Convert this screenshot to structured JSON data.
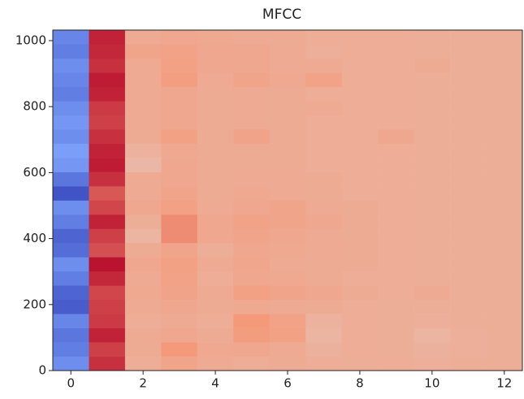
{
  "chart_data": {
    "type": "heatmap",
    "title": "MFCC",
    "colormap": "coolwarm",
    "vlim": [
      -1,
      1
    ],
    "x": [
      0,
      1,
      2,
      3,
      4,
      5,
      6,
      7,
      8,
      9,
      10,
      11,
      12
    ],
    "ybins": [
      0,
      43,
      86,
      129,
      172,
      215,
      258,
      301,
      344,
      387,
      430,
      473,
      516,
      559,
      602,
      645,
      688,
      731,
      774,
      817,
      860,
      903,
      946,
      989,
      1032
    ],
    "z": [
      [
        -0.6,
        0.85,
        0.36,
        0.42,
        0.38,
        0.36,
        0.37,
        0.36,
        0.35,
        0.36,
        0.34,
        0.35,
        0.35
      ],
      [
        -0.7,
        0.8,
        0.37,
        0.5,
        0.39,
        0.4,
        0.38,
        0.33,
        0.36,
        0.35,
        0.33,
        0.34,
        0.35
      ],
      [
        -0.75,
        0.9,
        0.38,
        0.4,
        0.37,
        0.48,
        0.45,
        0.3,
        0.36,
        0.35,
        0.3,
        0.34,
        0.35
      ],
      [
        -0.65,
        0.82,
        0.36,
        0.38,
        0.36,
        0.5,
        0.44,
        0.32,
        0.36,
        0.35,
        0.34,
        0.35,
        0.35
      ],
      [
        -0.9,
        0.8,
        0.38,
        0.4,
        0.37,
        0.39,
        0.38,
        0.37,
        0.36,
        0.35,
        0.35,
        0.35,
        0.35
      ],
      [
        -0.85,
        0.78,
        0.39,
        0.43,
        0.38,
        0.45,
        0.42,
        0.4,
        0.37,
        0.36,
        0.38,
        0.35,
        0.35
      ],
      [
        -0.7,
        0.88,
        0.38,
        0.44,
        0.36,
        0.4,
        0.39,
        0.37,
        0.36,
        0.36,
        0.35,
        0.35,
        0.35
      ],
      [
        -0.6,
        0.95,
        0.4,
        0.45,
        0.38,
        0.41,
        0.38,
        0.37,
        0.37,
        0.36,
        0.35,
        0.35,
        0.35
      ],
      [
        -0.8,
        0.75,
        0.37,
        0.42,
        0.35,
        0.4,
        0.39,
        0.38,
        0.37,
        0.36,
        0.35,
        0.35,
        0.35
      ],
      [
        -0.85,
        0.8,
        0.3,
        0.55,
        0.4,
        0.42,
        0.4,
        0.38,
        0.37,
        0.36,
        0.35,
        0.35,
        0.35
      ],
      [
        -0.7,
        0.9,
        0.35,
        0.55,
        0.4,
        0.44,
        0.42,
        0.4,
        0.37,
        0.36,
        0.35,
        0.35,
        0.35
      ],
      [
        -0.6,
        0.78,
        0.4,
        0.45,
        0.38,
        0.4,
        0.42,
        0.38,
        0.37,
        0.36,
        0.35,
        0.35,
        0.35
      ],
      [
        -0.95,
        0.72,
        0.38,
        0.42,
        0.37,
        0.39,
        0.38,
        0.37,
        0.36,
        0.36,
        0.35,
        0.35,
        0.35
      ],
      [
        -0.75,
        0.85,
        0.38,
        0.4,
        0.37,
        0.38,
        0.38,
        0.37,
        0.36,
        0.36,
        0.35,
        0.35,
        0.35
      ],
      [
        -0.55,
        0.92,
        0.28,
        0.4,
        0.37,
        0.37,
        0.37,
        0.36,
        0.36,
        0.36,
        0.35,
        0.35,
        0.35
      ],
      [
        -0.5,
        0.9,
        0.32,
        0.39,
        0.37,
        0.37,
        0.37,
        0.36,
        0.36,
        0.36,
        0.35,
        0.35,
        0.35
      ],
      [
        -0.6,
        0.85,
        0.37,
        0.45,
        0.37,
        0.43,
        0.37,
        0.36,
        0.36,
        0.4,
        0.35,
        0.35,
        0.35
      ],
      [
        -0.55,
        0.8,
        0.38,
        0.4,
        0.37,
        0.38,
        0.37,
        0.36,
        0.36,
        0.36,
        0.35,
        0.35,
        0.35
      ],
      [
        -0.6,
        0.82,
        0.38,
        0.4,
        0.37,
        0.38,
        0.37,
        0.38,
        0.36,
        0.36,
        0.35,
        0.35,
        0.35
      ],
      [
        -0.7,
        0.9,
        0.38,
        0.4,
        0.37,
        0.38,
        0.37,
        0.36,
        0.36,
        0.36,
        0.35,
        0.35,
        0.35
      ],
      [
        -0.65,
        0.92,
        0.38,
        0.47,
        0.38,
        0.42,
        0.39,
        0.44,
        0.36,
        0.36,
        0.35,
        0.35,
        0.35
      ],
      [
        -0.6,
        0.85,
        0.38,
        0.45,
        0.4,
        0.4,
        0.38,
        0.38,
        0.36,
        0.36,
        0.37,
        0.35,
        0.35
      ],
      [
        -0.7,
        0.88,
        0.42,
        0.44,
        0.4,
        0.4,
        0.38,
        0.34,
        0.36,
        0.36,
        0.35,
        0.35,
        0.35
      ],
      [
        -0.65,
        0.9,
        0.38,
        0.4,
        0.39,
        0.38,
        0.37,
        0.36,
        0.36,
        0.36,
        0.35,
        0.35,
        0.35
      ]
    ],
    "xlim": [
      -0.5,
      12.5
    ],
    "ylim": [
      0,
      1032
    ],
    "xticks": [
      0,
      2,
      4,
      6,
      8,
      10,
      12
    ],
    "yticks": [
      0,
      200,
      400,
      600,
      800,
      1000
    ]
  }
}
